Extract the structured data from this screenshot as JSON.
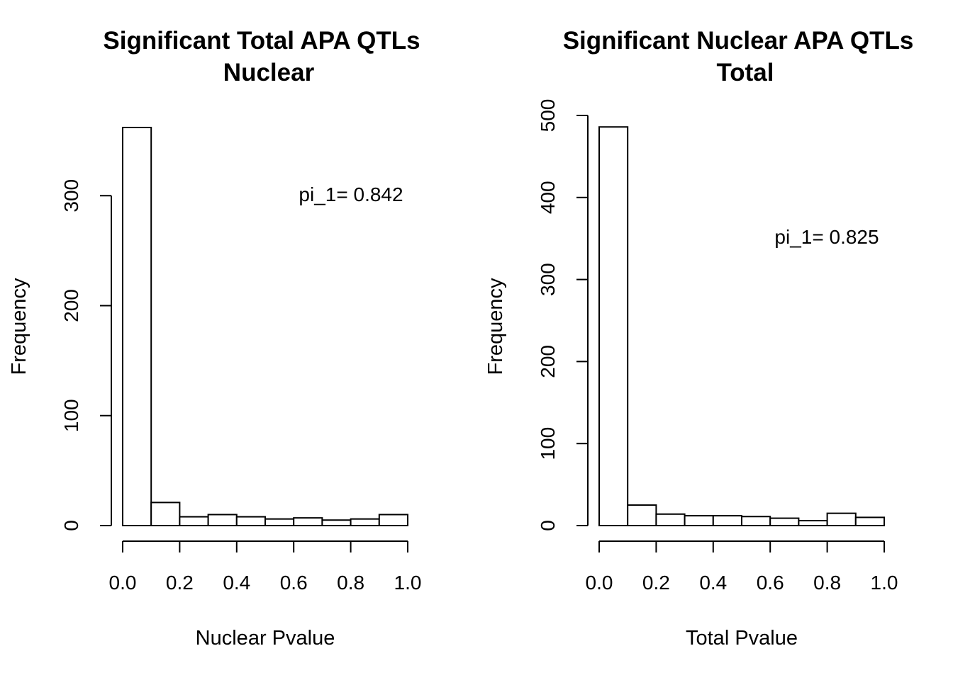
{
  "chart_data": [
    {
      "type": "bar",
      "title": "Significant Total APA QTLs",
      "subtitle": "Nuclear",
      "xlabel": "Nuclear Pvalue",
      "ylabel": "Frequency",
      "annotation": "pi_1= 0.842",
      "bin_edges": [
        0.0,
        0.1,
        0.2,
        0.3,
        0.4,
        0.5,
        0.6,
        0.7,
        0.8,
        0.9,
        1.0
      ],
      "values": [
        362,
        21,
        8,
        10,
        8,
        6,
        7,
        5,
        6,
        10
      ],
      "xlim": [
        0,
        1
      ],
      "ylim": [
        0,
        362
      ],
      "xticks": [
        0.0,
        0.2,
        0.4,
        0.6,
        0.8,
        1.0
      ],
      "xtick_labels": [
        "0.0",
        "0.2",
        "0.4",
        "0.6",
        "0.8",
        "1.0"
      ],
      "yticks": [
        0,
        100,
        200,
        300
      ],
      "ytick_labels": [
        "0",
        "100",
        "200",
        "300"
      ],
      "grid": false
    },
    {
      "type": "bar",
      "title": "Significant Nuclear APA QTLs",
      "subtitle": "Total",
      "xlabel": "Total Pvalue",
      "ylabel": "Frequency",
      "annotation": "pi_1= 0.825",
      "bin_edges": [
        0.0,
        0.1,
        0.2,
        0.3,
        0.4,
        0.5,
        0.6,
        0.7,
        0.8,
        0.9,
        1.0
      ],
      "values": [
        486,
        25,
        14,
        12,
        12,
        11,
        9,
        6,
        15,
        10
      ],
      "xlim": [
        0,
        1
      ],
      "ylim": [
        0,
        500
      ],
      "xticks": [
        0.0,
        0.2,
        0.4,
        0.6,
        0.8,
        1.0
      ],
      "xtick_labels": [
        "0.0",
        "0.2",
        "0.4",
        "0.6",
        "0.8",
        "1.0"
      ],
      "yticks": [
        0,
        100,
        200,
        300,
        400,
        500
      ],
      "ytick_labels": [
        "0",
        "100",
        "200",
        "300",
        "400",
        "500"
      ],
      "grid": false
    }
  ]
}
